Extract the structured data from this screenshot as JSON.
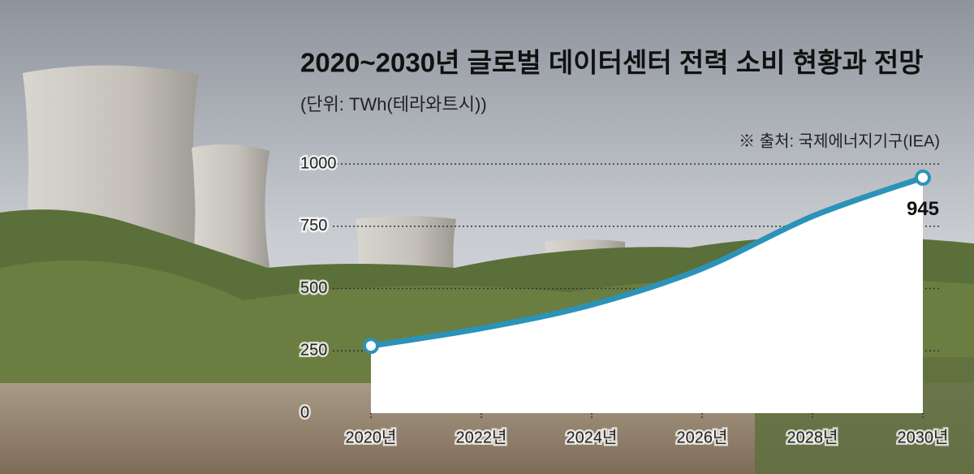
{
  "chart_data": {
    "type": "line",
    "title": "2020~2030년 글로벌 데이터센터 전력 소비 현황과 전망",
    "subtitle": "(단위: TWh(테라와트시))",
    "source": "※ 출처: 국제에너지기구(IEA)",
    "categories": [
      "2020년",
      "2022년",
      "2024년",
      "2026년",
      "2028년",
      "2030년"
    ],
    "series": [
      {
        "name": null,
        "color": "#2b93b8",
        "values": [
          270,
          340,
          435,
          580,
          790,
          945
        ]
      }
    ],
    "ylim": [
      0,
      1000
    ],
    "yticks": [
      0,
      250,
      500,
      750,
      1000
    ],
    "grid": true
  }
}
